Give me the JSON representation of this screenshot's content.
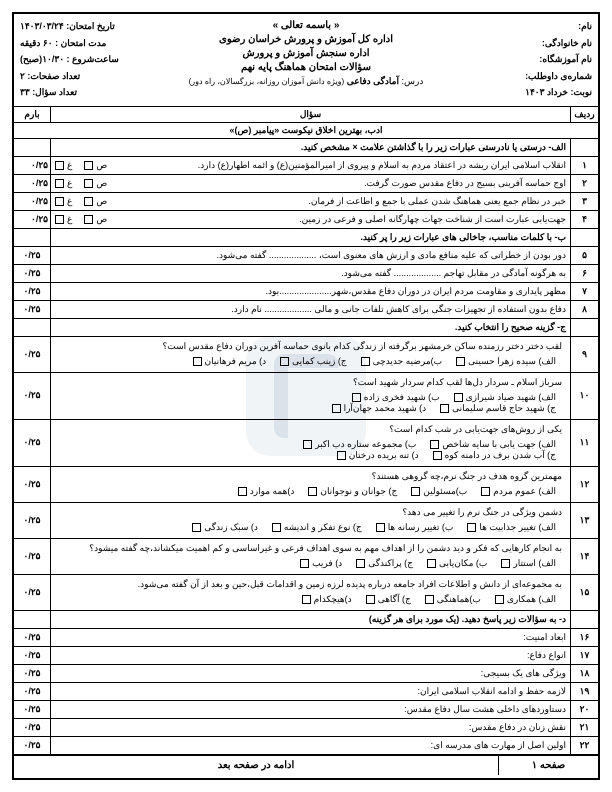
{
  "header": {
    "basmeh": "« باسمه تعالی »",
    "org1": "اداره کل آموزش و پرورش خراسان رضوی",
    "org2": "اداره سنجش آموزش و پرورش",
    "title": "سؤالات امتحان هماهنگ پایه نهم",
    "course_prefix": "درس:",
    "course": "آمادگی دفاعی",
    "course_note": "(ویژه دانش آموزان روزانه، بزرگسالان، راه دور)",
    "right": {
      "name": "نام:",
      "family": "نام خانوادگی:",
      "school": "نام آموزشگاه:",
      "candidate": "شماره‌ی داوطلب:",
      "term": "نوبت: خرداد ۱۴۰۳"
    },
    "left": {
      "date": "تاریخ امتحان: ۱۴۰۳/۰۳/۲۴",
      "duration": "مدت امتحان : ۶۰ دقیقه",
      "start": "ساعت‌شروع : ۱۰/۳۰(صبح)",
      "pages": "تعداد صفحات: ۲",
      "qcount": "تعداد سؤال: ۳۳"
    }
  },
  "colhead": {
    "num": "ردیف",
    "q": "سؤال",
    "score": "بارم"
  },
  "hadith": "ادب، بهترین اخلاق نیکوست   «پیامبر (ص)»",
  "sections": {
    "a": "الف- درستی یا نادرستی عبارات زیر را با گذاشتن علامت × مشخص کنید.",
    "b": "ب- با کلمات مناسب، جاخالی های عبارات زیر را پر کنید.",
    "c": "ج- گزینه صحیح را انتخاب کنید.",
    "d": "د- به سؤالات زیر پاسخ دهید. (یک مورد برای هر گزینه)"
  },
  "tf_labels": {
    "sahih": "ص",
    "ghalat": "غ"
  },
  "score_025": "۰/۲۵",
  "questions_tf": [
    {
      "n": "۱",
      "text": "انقلاب اسلامی ایران ریشه در اعتقاد مردم به اسلام و پیروی از امیرالمؤمنین(ع) و ائمه اطهار(ع) دارد."
    },
    {
      "n": "۲",
      "text": "اوج حماسه آفرینی بسیج در دفاع مقدس صورت گرفت."
    },
    {
      "n": "۳",
      "text": "خبر در نظام جمع یعنی هماهنگ شدن عملی با جمع و اطاعت از فرمان."
    },
    {
      "n": "۴",
      "text": "جهت‌یابی عبارت است از شناخت جهات چهارگانه اصلی و فرعی در زمین."
    }
  ],
  "questions_blank": [
    {
      "n": "۵",
      "text": "دور بودن از خطراتی که علیه منافع مادی و ارزش های معنوی است، ................... گفته می‌شود."
    },
    {
      "n": "۶",
      "text": "به هرگونه آمادگی در مقابل تهاجم ................... گفته می‌شود."
    },
    {
      "n": "۷",
      "text": "مظهر پایداری و مقاومت مردم ایران در دوران دفاع مقدس،شهر.....................بود."
    },
    {
      "n": "۸",
      "text": "دفاع بدون استفاده از تجهیزات جنگی برای کاهش تلفات جانی و مالی ................... نام دارد."
    }
  ],
  "questions_mc": [
    {
      "n": "۹",
      "q": "لقب دختر دختر رزمنده ساکن خرمشهر برگرفته از زندگی کدام بانوی حماسه آفرین دوران دفاع مقدس است؟",
      "opts": [
        "الف) سیده زهرا حسینی",
        "ب)مرضیه حدیدچی",
        "ج) زینب کمایی",
        "د) مریم فرهانیان"
      ]
    },
    {
      "n": "۱۰",
      "q": "سرباز اسلام ـ سردار دل‌ها لقب کدام سردار شهید است؟",
      "opts": [
        "الف) شهید صیاد شیرازی",
        "ب) شهید فخری زاده",
        "",
        ""
      ],
      "opts2": [
        "ج) شهید حاج قاسم سلیمانی",
        "د) شهید محمد جهان‌آرا",
        "",
        ""
      ]
    },
    {
      "n": "۱۱",
      "q": "یکی از روش‌های جهت‌یابی در شب کدام است؟",
      "opts": [
        "الف) جهت یابی با سایه شاخص",
        "ب) مجموعه ستاره دب اکبر",
        "",
        ""
      ],
      "opts2": [
        "ج) آب شدن برف در دامنه کوه",
        "د) تنه بریده درختان",
        "",
        ""
      ]
    },
    {
      "n": "۱۲",
      "q": "مهمترین گروه هدف در جنگ نرم،چه گروهی هستند؟",
      "opts": [
        "الف) عموم مردم",
        "ب)مسئولین",
        "ج) جوانان و نوجوانان",
        "د)همه موارد"
      ]
    },
    {
      "n": "۱۳",
      "q": "دشمن ویژگی در جنگ نرم را تغییر می دهد؟",
      "opts": [
        "الف) تغییر جذابیت ها",
        "ب) تغییر رسانه ها",
        "ج) نوع تفکر و اندیشه",
        "د) سبک زندگی"
      ]
    },
    {
      "n": "۱۴",
      "q": "به انجام کارهایی که فکر و دید دشمن را از اهداف مهم به سوی اهداف فرعی و غیراساسی و کم اهمیت میکشاند،چه گفته میشود؟",
      "opts": [
        "الف) استتار",
        "ب) مکان‌یابی",
        "ج) پراکندگی",
        "د) فریب"
      ]
    },
    {
      "n": "۱۵",
      "q": "به مجموعه‌ای از دانش و اطلاعات افراد جامعه درباره پدیده لرزه زمین و اقدامات قبل،حین و بعد از آن گفته می‌شود.",
      "opts": [
        "الف) همکاری",
        "ب)هماهنگی",
        "ج) آگاهی",
        "د)هیچکدام"
      ]
    }
  ],
  "questions_short": [
    {
      "n": "۱۶",
      "text": "ابعاد امنیت:"
    },
    {
      "n": "۱۷",
      "text": "انواع دفاع:"
    },
    {
      "n": "۱۸",
      "text": "ویژگی های یک بسیجی:"
    },
    {
      "n": "۱۹",
      "text": "لازمه حفظ و ادامه انقلاب اسلامی ایران:"
    },
    {
      "n": "۲۰",
      "text": "دستاوردهای داخلی هشت سال دفاع مقدس:"
    },
    {
      "n": "۲۱",
      "text": "نقش زنان در دفاع مقدس:"
    },
    {
      "n": "۲۲",
      "text": "اولین اصل از مهارت های مدرسه ای:"
    }
  ],
  "footer": {
    "page": "صفحه ۱",
    "cont": "ادامه در صفحه بعد"
  }
}
